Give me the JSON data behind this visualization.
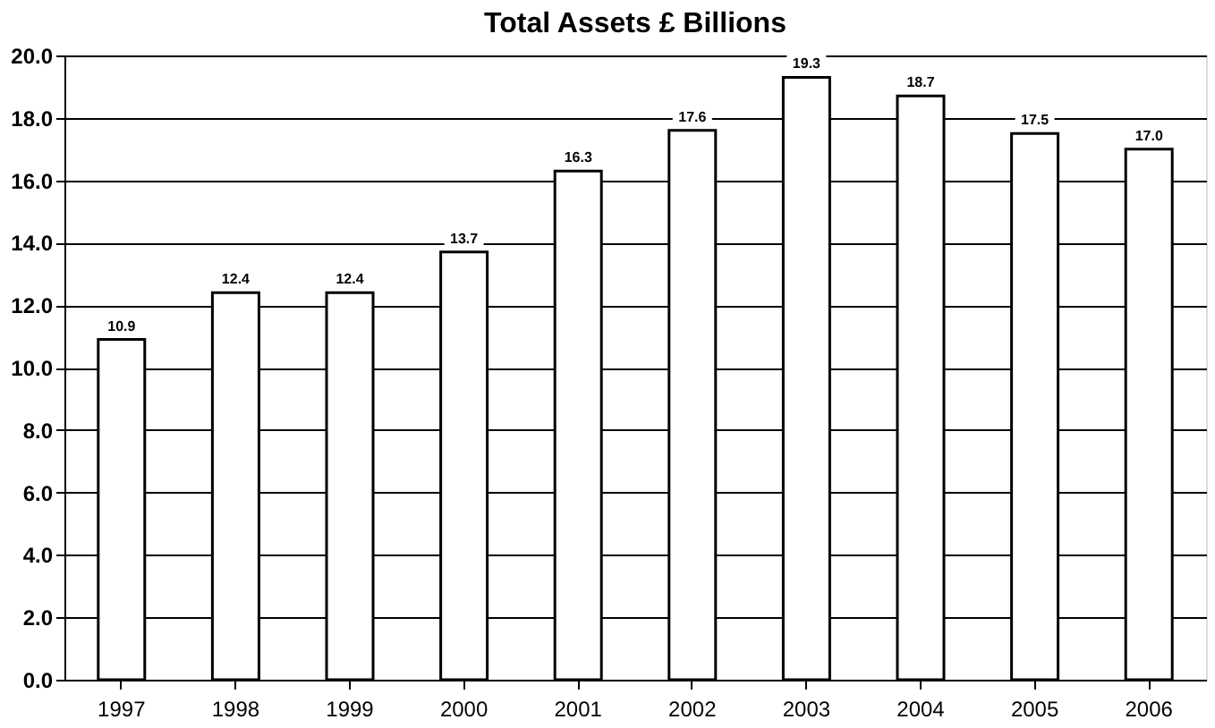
{
  "chart_data": {
    "type": "bar",
    "title": "Total Assets £ Billions",
    "categories": [
      "1997",
      "1998",
      "1999",
      "2000",
      "2001",
      "2002",
      "2003",
      "2004",
      "2005",
      "2006"
    ],
    "values": [
      10.9,
      12.4,
      12.4,
      13.7,
      16.3,
      17.6,
      19.3,
      18.7,
      17.5,
      17.0
    ],
    "color": "#ffffff",
    "ylim": [
      0,
      20
    ],
    "yticks": [
      {
        "value": 0,
        "label": "0.0"
      },
      {
        "value": 2,
        "label": "2.0"
      },
      {
        "value": 4,
        "label": "4.0"
      },
      {
        "value": 6,
        "label": "6.0"
      },
      {
        "value": 8,
        "label": "8.0"
      },
      {
        "value": 10,
        "label": "10.0"
      },
      {
        "value": 12,
        "label": "12.0"
      },
      {
        "value": 14,
        "label": "14.0"
      },
      {
        "value": 16,
        "label": "16.0"
      },
      {
        "value": 18,
        "label": "18.0"
      },
      {
        "value": 20,
        "label": "20.0"
      }
    ],
    "value_labels": [
      "10.9",
      "12.4",
      "12.4",
      "13.7",
      "16.3",
      "17.6",
      "19.3",
      "18.7",
      "17.5",
      "17.0"
    ],
    "grid": "y"
  }
}
